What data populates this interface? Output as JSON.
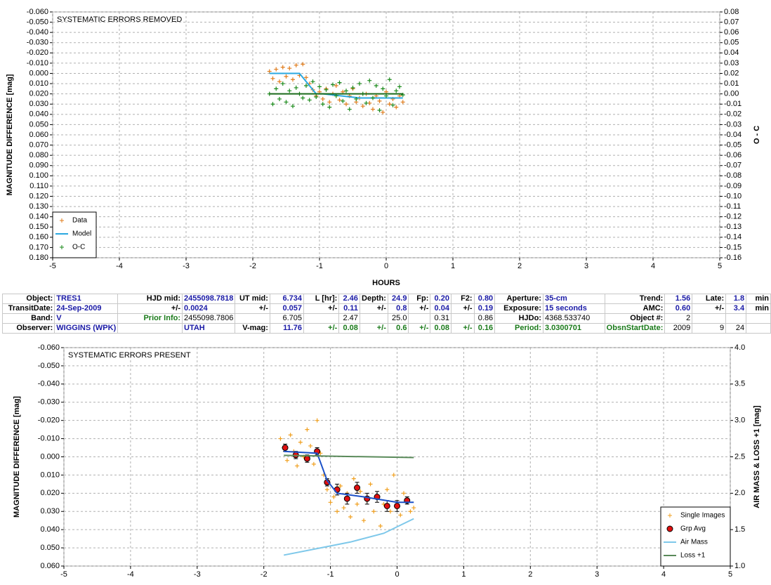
{
  "chart_data": [
    {
      "type": "scatter",
      "title": "SYSTEMATIC ERRORS REMOVED",
      "xlabel": "HOURS",
      "ylabel": "MAGNITUDE DIFFERENCE [mag]",
      "y2label": "O - C",
      "xlim": [
        -5,
        5
      ],
      "xticks": [
        -5,
        -4,
        -3,
        -2,
        -1,
        0,
        1,
        2,
        3,
        4,
        5
      ],
      "ylim": [
        -0.06,
        0.18
      ],
      "y_inverted": true,
      "yticks": [
        {
          "value": -0.06,
          "label": "-0.060"
        },
        {
          "value": -0.05,
          "label": "-0.050"
        },
        {
          "value": -0.04,
          "label": "-0.040"
        },
        {
          "value": -0.03,
          "label": "-0.030"
        },
        {
          "value": -0.02,
          "label": "-0.020"
        },
        {
          "value": -0.01,
          "label": "-0.010"
        },
        {
          "value": 0,
          "label": "0.000"
        },
        {
          "value": 0.01,
          "label": "0.010"
        },
        {
          "value": 0.02,
          "label": "0.020"
        },
        {
          "value": 0.03,
          "label": "0.030"
        },
        {
          "value": 0.04,
          "label": "0.040"
        },
        {
          "value": 0.05,
          "label": "0.050"
        },
        {
          "value": 0.06,
          "label": "0.060"
        },
        {
          "value": 0.07,
          "label": "0.070"
        },
        {
          "value": 0.08,
          "label": "0.080"
        },
        {
          "value": 0.09,
          "label": "0.090"
        },
        {
          "value": 0.1,
          "label": "0.100"
        },
        {
          "value": 0.11,
          "label": "0.110"
        },
        {
          "value": 0.12,
          "label": "0.120"
        },
        {
          "value": 0.13,
          "label": "0.130"
        },
        {
          "value": 0.14,
          "label": "0.140"
        },
        {
          "value": 0.15,
          "label": "0.150"
        },
        {
          "value": 0.16,
          "label": "0.160"
        },
        {
          "value": 0.17,
          "label": "0.170"
        },
        {
          "value": 0.18,
          "label": "0.180"
        }
      ],
      "y2lim": [
        -0.16,
        0.08
      ],
      "y2ticks": [
        {
          "value": -0.16,
          "label": "-0.16"
        },
        {
          "value": -0.15,
          "label": "-0.15"
        },
        {
          "value": -0.14,
          "label": "-0.14"
        },
        {
          "value": -0.13,
          "label": "-0.13"
        },
        {
          "value": -0.12,
          "label": "-0.12"
        },
        {
          "value": -0.11,
          "label": "-0.11"
        },
        {
          "value": -0.1,
          "label": "-0.10"
        },
        {
          "value": -0.09,
          "label": "-0.09"
        },
        {
          "value": -0.08,
          "label": "-0.08"
        },
        {
          "value": -0.07,
          "label": "-0.07"
        },
        {
          "value": -0.06,
          "label": "-0.06"
        },
        {
          "value": -0.05,
          "label": "-0.05"
        },
        {
          "value": -0.04,
          "label": "-0.04"
        },
        {
          "value": -0.03,
          "label": "-0.03"
        },
        {
          "value": -0.02,
          "label": "-0.02"
        },
        {
          "value": -0.01,
          "label": "-0.01"
        },
        {
          "value": 0,
          "label": "0.00"
        },
        {
          "value": 0.01,
          "label": "0.01"
        },
        {
          "value": 0.02,
          "label": "0.02"
        },
        {
          "value": 0.03,
          "label": "0.03"
        },
        {
          "value": 0.04,
          "label": "0.04"
        },
        {
          "value": 0.05,
          "label": "0.05"
        },
        {
          "value": 0.06,
          "label": "0.06"
        },
        {
          "value": 0.07,
          "label": "0.07"
        },
        {
          "value": 0.08,
          "label": "0.08"
        }
      ],
      "grid": true,
      "legend": "lower left",
      "series": [
        {
          "name": "Data",
          "color": "#e07b1a",
          "marker": "plus",
          "x": [
            -1.75,
            -1.7,
            -1.65,
            -1.6,
            -1.55,
            -1.5,
            -1.45,
            -1.4,
            -1.35,
            -1.3,
            -1.25,
            -1.2,
            -1.15,
            -1.1,
            -1.05,
            -1.0,
            -0.95,
            -0.9,
            -0.85,
            -0.8,
            -0.75,
            -0.7,
            -0.65,
            -0.6,
            -0.55,
            -0.5,
            -0.45,
            -0.4,
            -0.35,
            -0.3,
            -0.25,
            -0.2,
            -0.15,
            -0.1,
            -0.05,
            0.0,
            0.05,
            0.1,
            0.15,
            0.2,
            0.25
          ],
          "values": [
            -0.002,
            0.005,
            -0.004,
            0.008,
            -0.006,
            0.003,
            -0.005,
            0.006,
            -0.008,
            0.002,
            -0.009,
            0.004,
            0.01,
            0.016,
            0.022,
            0.018,
            0.025,
            0.015,
            0.028,
            0.02,
            0.012,
            0.026,
            0.018,
            0.03,
            0.022,
            0.015,
            0.028,
            0.024,
            0.032,
            0.02,
            0.029,
            0.035,
            0.022,
            0.027,
            0.038,
            0.018,
            0.03,
            0.025,
            0.033,
            0.022,
            0.028
          ]
        },
        {
          "name": "Model",
          "color": "#2aa8e0",
          "marker": "line",
          "x": [
            -1.75,
            -1.3,
            -1.05,
            -0.95,
            -0.4,
            0.25
          ],
          "values": [
            0.0,
            0.0,
            0.02,
            0.02,
            0.024,
            0.024
          ]
        },
        {
          "name": "O-C",
          "color": "#1a8a1a",
          "marker": "plus",
          "axis": "y2",
          "x": [
            -1.75,
            -1.7,
            -1.65,
            -1.6,
            -1.55,
            -1.5,
            -1.45,
            -1.4,
            -1.35,
            -1.3,
            -1.25,
            -1.2,
            -1.15,
            -1.1,
            -1.05,
            -1.0,
            -0.95,
            -0.9,
            -0.85,
            -0.8,
            -0.75,
            -0.7,
            -0.65,
            -0.6,
            -0.55,
            -0.5,
            -0.45,
            -0.4,
            -0.35,
            -0.3,
            -0.25,
            -0.2,
            -0.15,
            -0.1,
            -0.05,
            0.0,
            0.05,
            0.1,
            0.15,
            0.2,
            0.25
          ],
          "values": [
            0.0,
            -0.01,
            0.005,
            -0.005,
            0.01,
            -0.008,
            0.003,
            -0.012,
            0.006,
            0.0,
            -0.004,
            0.008,
            -0.006,
            0.012,
            -0.003,
            0.007,
            -0.01,
            0.004,
            -0.013,
            0.009,
            -0.002,
            0.011,
            -0.007,
            0.003,
            -0.015,
            0.006,
            -0.005,
            0.01,
            0.0,
            -0.009,
            0.013,
            -0.004,
            0.008,
            -0.016,
            0.005,
            -0.002,
            0.014,
            -0.011,
            0.003,
            0.007,
            -0.001
          ]
        },
        {
          "color": "#1a6a1a",
          "marker": "line",
          "axis": "y2",
          "x": [
            -1.75,
            0.25
          ],
          "values": [
            0.0,
            0.0
          ]
        }
      ]
    },
    {
      "type": "scatter",
      "title": "SYSTEMATIC ERRORS PRESENT",
      "ylabel": "MAGNITUDE DIFFERENCE [mag]",
      "y2label": "AIR MASS & LOSS +1 [mag]",
      "xlim": [
        -5,
        5
      ],
      "xticks": [
        -5,
        -4,
        -3,
        -2,
        -1,
        0,
        1,
        2,
        3,
        4,
        5
      ],
      "ylim": [
        -0.06,
        0.06
      ],
      "y_inverted": true,
      "yticks": [
        {
          "value": -0.06,
          "label": "-0.060"
        },
        {
          "value": -0.05,
          "label": "-0.050"
        },
        {
          "value": -0.04,
          "label": "-0.040"
        },
        {
          "value": -0.03,
          "label": "-0.030"
        },
        {
          "value": -0.02,
          "label": "-0.020"
        },
        {
          "value": -0.01,
          "label": "-0.010"
        },
        {
          "value": 0,
          "label": "0.000"
        },
        {
          "value": 0.01,
          "label": "0.010"
        },
        {
          "value": 0.02,
          "label": "0.020"
        },
        {
          "value": 0.03,
          "label": "0.030"
        },
        {
          "value": 0.04,
          "label": "0.040"
        },
        {
          "value": 0.05,
          "label": "0.050"
        },
        {
          "value": 0.06,
          "label": "0.060"
        }
      ],
      "y2lim": [
        4,
        1
      ],
      "y2_inverted": true,
      "y2ticks": [
        {
          "value": 1,
          "label": "1.0"
        },
        1.5,
        {
          "value": 2,
          "label": "2.0"
        },
        2.5,
        {
          "value": 3,
          "label": "3.0"
        },
        3.5,
        {
          "value": 4,
          "label": "4.0"
        }
      ],
      "grid": true,
      "legend": "lower right",
      "series": [
        {
          "name": "Single Images",
          "color": "#f0a020",
          "marker": "plus",
          "x": [
            -1.75,
            -1.7,
            -1.65,
            -1.6,
            -1.55,
            -1.5,
            -1.45,
            -1.4,
            -1.35,
            -1.3,
            -1.25,
            -1.2,
            -1.15,
            -1.1,
            -1.05,
            -1.0,
            -0.95,
            -0.9,
            -0.85,
            -0.8,
            -0.75,
            -0.7,
            -0.65,
            -0.6,
            -0.55,
            -0.5,
            -0.45,
            -0.4,
            -0.35,
            -0.3,
            -0.25,
            -0.2,
            -0.15,
            -0.1,
            -0.05,
            0.0,
            0.05,
            0.1,
            0.15,
            0.2,
            0.25
          ],
          "values": [
            -0.01,
            -0.005,
            0.002,
            -0.012,
            -0.003,
            0.005,
            -0.008,
            0.0,
            -0.015,
            -0.006,
            0.004,
            -0.02,
            -0.002,
            0.01,
            0.018,
            0.025,
            0.022,
            0.03,
            0.016,
            0.028,
            0.02,
            0.033,
            0.012,
            0.026,
            0.019,
            0.035,
            0.024,
            0.015,
            0.03,
            0.022,
            0.038,
            0.026,
            0.018,
            0.03,
            0.01,
            0.028,
            0.032,
            0.02,
            0.025,
            0.03,
            0.028
          ]
        },
        {
          "name": "Grp Avg",
          "color": "#e01010",
          "marker": "circle",
          "x": [
            -1.68,
            -1.52,
            -1.35,
            -1.2,
            -1.05,
            -0.9,
            -0.75,
            -0.6,
            -0.45,
            -0.3,
            -0.15,
            0.0,
            0.15
          ],
          "values": [
            -0.005,
            -0.001,
            0.001,
            -0.003,
            0.014,
            0.018,
            0.023,
            0.017,
            0.023,
            0.022,
            0.027,
            0.027,
            0.024
          ],
          "errors": [
            0.002,
            0.002,
            0.002,
            0.002,
            0.002,
            0.003,
            0.003,
            0.003,
            0.003,
            0.003,
            0.003,
            0.003,
            0.002
          ]
        },
        {
          "color": "#1a50c8",
          "marker": "line",
          "x": [
            -1.7,
            -1.2,
            -1.05,
            -0.9,
            -0.5,
            0.0,
            0.25
          ],
          "values": [
            -0.003,
            -0.002,
            0.013,
            0.02,
            0.022,
            0.025,
            0.025
          ]
        },
        {
          "name": "Air Mass",
          "color": "#7ec8ea",
          "marker": "line",
          "axis": "y2",
          "x": [
            -1.7,
            -1.2,
            -0.7,
            -0.2,
            0.25
          ],
          "values": [
            1.15,
            1.24,
            1.33,
            1.45,
            1.65
          ]
        },
        {
          "name": "Loss +1",
          "color": "#5a8a5a",
          "marker": "line",
          "axis": "y2",
          "x": [
            -1.7,
            0.25
          ],
          "values": [
            2.52,
            2.49
          ]
        }
      ]
    }
  ],
  "table": {
    "rows": [
      [
        "Object:",
        "TRES1",
        "HJD mid:",
        "2455098.7818",
        "UT mid:",
        "6.734",
        "L [hr]:",
        "2.46",
        "Depth:",
        "24.9",
        "Fp:",
        "0.20",
        "F2:",
        "0.80",
        "Aperture:",
        "35-cm",
        "Trend:",
        "1.56",
        "Late:",
        "1.8",
        "min"
      ],
      [
        "TransitDate:",
        "24-Sep-2009",
        "+/-",
        "0.0024",
        "+/-",
        "0.057",
        "+/-",
        "0.11",
        "+/-",
        "0.8",
        "+/-",
        "0.04",
        "+/-",
        "0.19",
        "Exposure:",
        "15 seconds",
        "AMC:",
        "0.60",
        "+/-",
        "3.4",
        "min"
      ],
      [
        "Band:",
        "V",
        "Prior Info:",
        "2455098.7806",
        null,
        "6.705",
        null,
        "2.47",
        null,
        "25.0",
        null,
        "0.31",
        null,
        "0.86",
        "HJDo:",
        "4368.533740",
        "Object #:",
        "2",
        null,
        null,
        null
      ],
      [
        "Observer:",
        "WIGGINS (WPK)",
        null,
        "UTAH",
        "V-mag:",
        "11.76",
        "+/-",
        "0.08",
        "+/-",
        "0.6",
        "+/-",
        "0.08",
        "+/-",
        "0.16",
        "Period:",
        "3.0300701",
        "ObsnStartDate:",
        "2009",
        "9",
        "24",
        null
      ]
    ]
  }
}
